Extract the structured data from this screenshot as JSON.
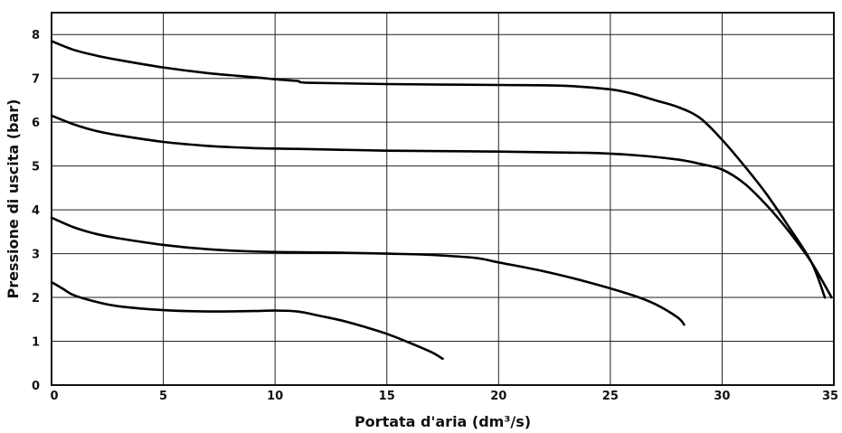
{
  "chart_data": {
    "type": "line",
    "xlabel": "Portata d'aria (dm³/s)",
    "ylabel": "Pressione di uscita (bar)",
    "xlim": [
      0,
      35
    ],
    "ylim": [
      0,
      8.5
    ],
    "xticks": [
      0,
      5,
      10,
      15,
      20,
      25,
      30,
      35
    ],
    "yticks": [
      0,
      1,
      2,
      3,
      4,
      5,
      6,
      7,
      8
    ],
    "grid": true,
    "legend": "none",
    "series": [
      {
        "x": [
          0,
          1,
          2,
          3,
          5,
          7,
          9,
          10,
          11,
          11.5,
          15,
          20,
          23,
          25,
          26,
          27,
          28,
          29,
          30,
          31,
          32,
          33,
          34,
          34.6
        ],
        "y": [
          7.85,
          7.65,
          7.52,
          7.42,
          7.25,
          7.12,
          7.03,
          6.98,
          6.94,
          6.9,
          6.87,
          6.85,
          6.83,
          6.75,
          6.65,
          6.5,
          6.35,
          6.1,
          5.6,
          5.0,
          4.35,
          3.6,
          2.8,
          2.0
        ]
      },
      {
        "x": [
          0,
          1,
          2,
          3,
          5,
          7,
          9,
          11,
          15,
          20,
          24,
          26,
          28,
          29,
          30,
          31,
          32,
          33,
          34,
          34.9
        ],
        "y": [
          6.15,
          5.95,
          5.8,
          5.7,
          5.55,
          5.46,
          5.41,
          5.39,
          5.35,
          5.33,
          5.3,
          5.25,
          5.15,
          5.05,
          4.92,
          4.6,
          4.1,
          3.5,
          2.8,
          2.0
        ]
      },
      {
        "x": [
          0,
          1,
          2,
          3,
          5,
          7,
          9,
          11,
          13,
          15,
          17,
          19,
          20,
          22,
          24,
          26,
          27,
          28,
          28.3
        ],
        "y": [
          3.82,
          3.6,
          3.45,
          3.35,
          3.2,
          3.1,
          3.05,
          3.03,
          3.02,
          3.0,
          2.97,
          2.9,
          2.8,
          2.6,
          2.35,
          2.05,
          1.85,
          1.55,
          1.38
        ]
      },
      {
        "x": [
          0,
          0.5,
          1,
          2,
          3,
          5,
          7,
          9,
          10,
          11,
          12,
          13,
          14,
          15,
          16,
          17,
          17.5
        ],
        "y": [
          2.35,
          2.2,
          2.05,
          1.9,
          1.8,
          1.71,
          1.68,
          1.69,
          1.7,
          1.68,
          1.58,
          1.47,
          1.33,
          1.17,
          0.97,
          0.75,
          0.6
        ]
      }
    ]
  }
}
